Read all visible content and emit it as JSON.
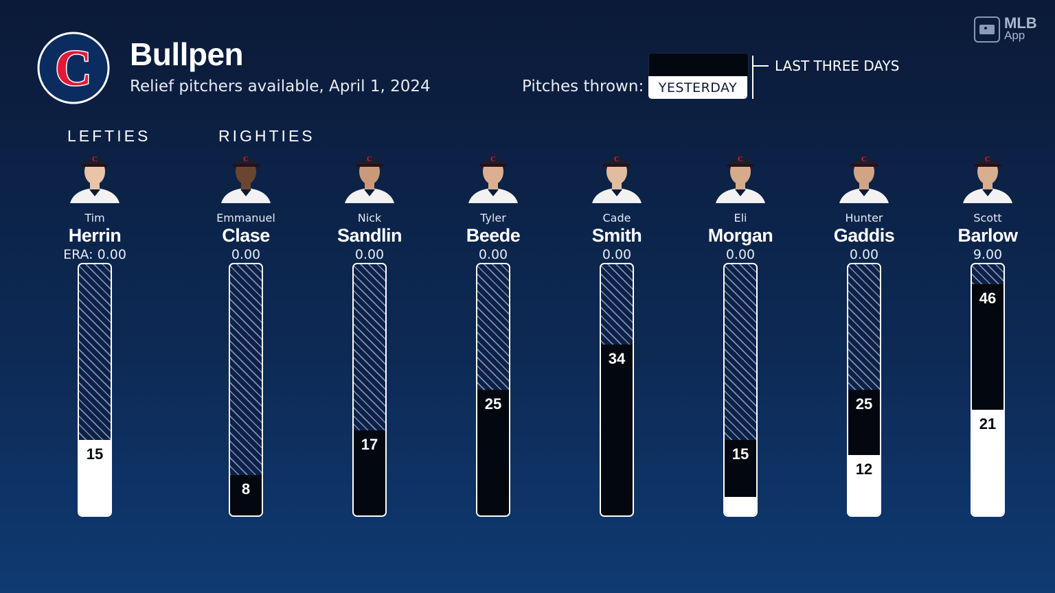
{
  "header": {
    "title": "Bullpen",
    "subtitle": "Relief pitchers available, April 1, 2024",
    "team_logo_letter": "C"
  },
  "legend": {
    "label": "Pitches thrown:",
    "yesterday": "YESTERDAY",
    "last_three_days": "LAST THREE DAYS"
  },
  "brand": {
    "line1": "MLB",
    "line2": "App"
  },
  "groups": {
    "lefties": "LEFTIES",
    "righties": "RIGHTIES"
  },
  "colors": {
    "navy": "#0b1a38",
    "red": "#e31937",
    "dark": "#030810",
    "white": "#ffffff"
  },
  "chart_data": {
    "type": "bar",
    "categories": [
      "Tim Herrin",
      "Emmanuel Clase",
      "Nick Sandlin",
      "Tyler Beede",
      "Cade Smith",
      "Eli Morgan",
      "Hunter Gaddis",
      "Scott Barlow"
    ],
    "series": [
      {
        "name": "YESTERDAY",
        "values": [
          15,
          0,
          0,
          0,
          0,
          0,
          12,
          21
        ]
      },
      {
        "name": "LAST THREE DAYS",
        "values": [
          15,
          8,
          17,
          25,
          34,
          15,
          25,
          46
        ]
      }
    ],
    "ylim": [
      0,
      50
    ]
  },
  "players": [
    {
      "first": "Tim",
      "last": "Herrin",
      "era": "ERA: 0.00",
      "yesterday": 15,
      "three_days": 15,
      "yesterday_label": "15",
      "three_days_label": "",
      "skin": "#e8c4a8",
      "hair": "#d9b88a"
    },
    {
      "first": "Emmanuel",
      "last": "Clase",
      "era": "0.00",
      "yesterday": 0,
      "three_days": 8,
      "yesterday_label": "",
      "three_days_label": "8",
      "skin": "#6b4530",
      "hair": "#1a120e"
    },
    {
      "first": "Nick",
      "last": "Sandlin",
      "era": "0.00",
      "yesterday": 0,
      "three_days": 17,
      "yesterday_label": "",
      "three_days_label": "17",
      "skin": "#c99a7a",
      "hair": "#2a1d17"
    },
    {
      "first": "Tyler",
      "last": "Beede",
      "era": "0.00",
      "yesterday": 0,
      "three_days": 25,
      "yesterday_label": "",
      "three_days_label": "25",
      "skin": "#dbb092",
      "hair": "#5a3d2a"
    },
    {
      "first": "Cade",
      "last": "Smith",
      "era": "0.00",
      "yesterday": 0,
      "three_days": 34,
      "yesterday_label": "",
      "three_days_label": "34",
      "skin": "#e2bca0",
      "hair": "#4a3426"
    },
    {
      "first": "Eli",
      "last": "Morgan",
      "era": "0.00",
      "yesterday": 0,
      "three_days": 15,
      "yesterday_label": "",
      "three_days_label": "15",
      "skin": "#d6ab8c",
      "hair": "#2a1d17"
    },
    {
      "first": "Hunter",
      "last": "Gaddis",
      "era": "0.00",
      "yesterday": 12,
      "three_days": 25,
      "yesterday_label": "12",
      "three_days_label": "25",
      "skin": "#d2a486",
      "hair": "#4a3022"
    },
    {
      "first": "Scott",
      "last": "Barlow",
      "era": "9.00",
      "yesterday": 21,
      "three_days": 46,
      "yesterday_label": "21",
      "three_days_label": "46",
      "skin": "#d8ae8e",
      "hair": "#8a5a30"
    }
  ]
}
